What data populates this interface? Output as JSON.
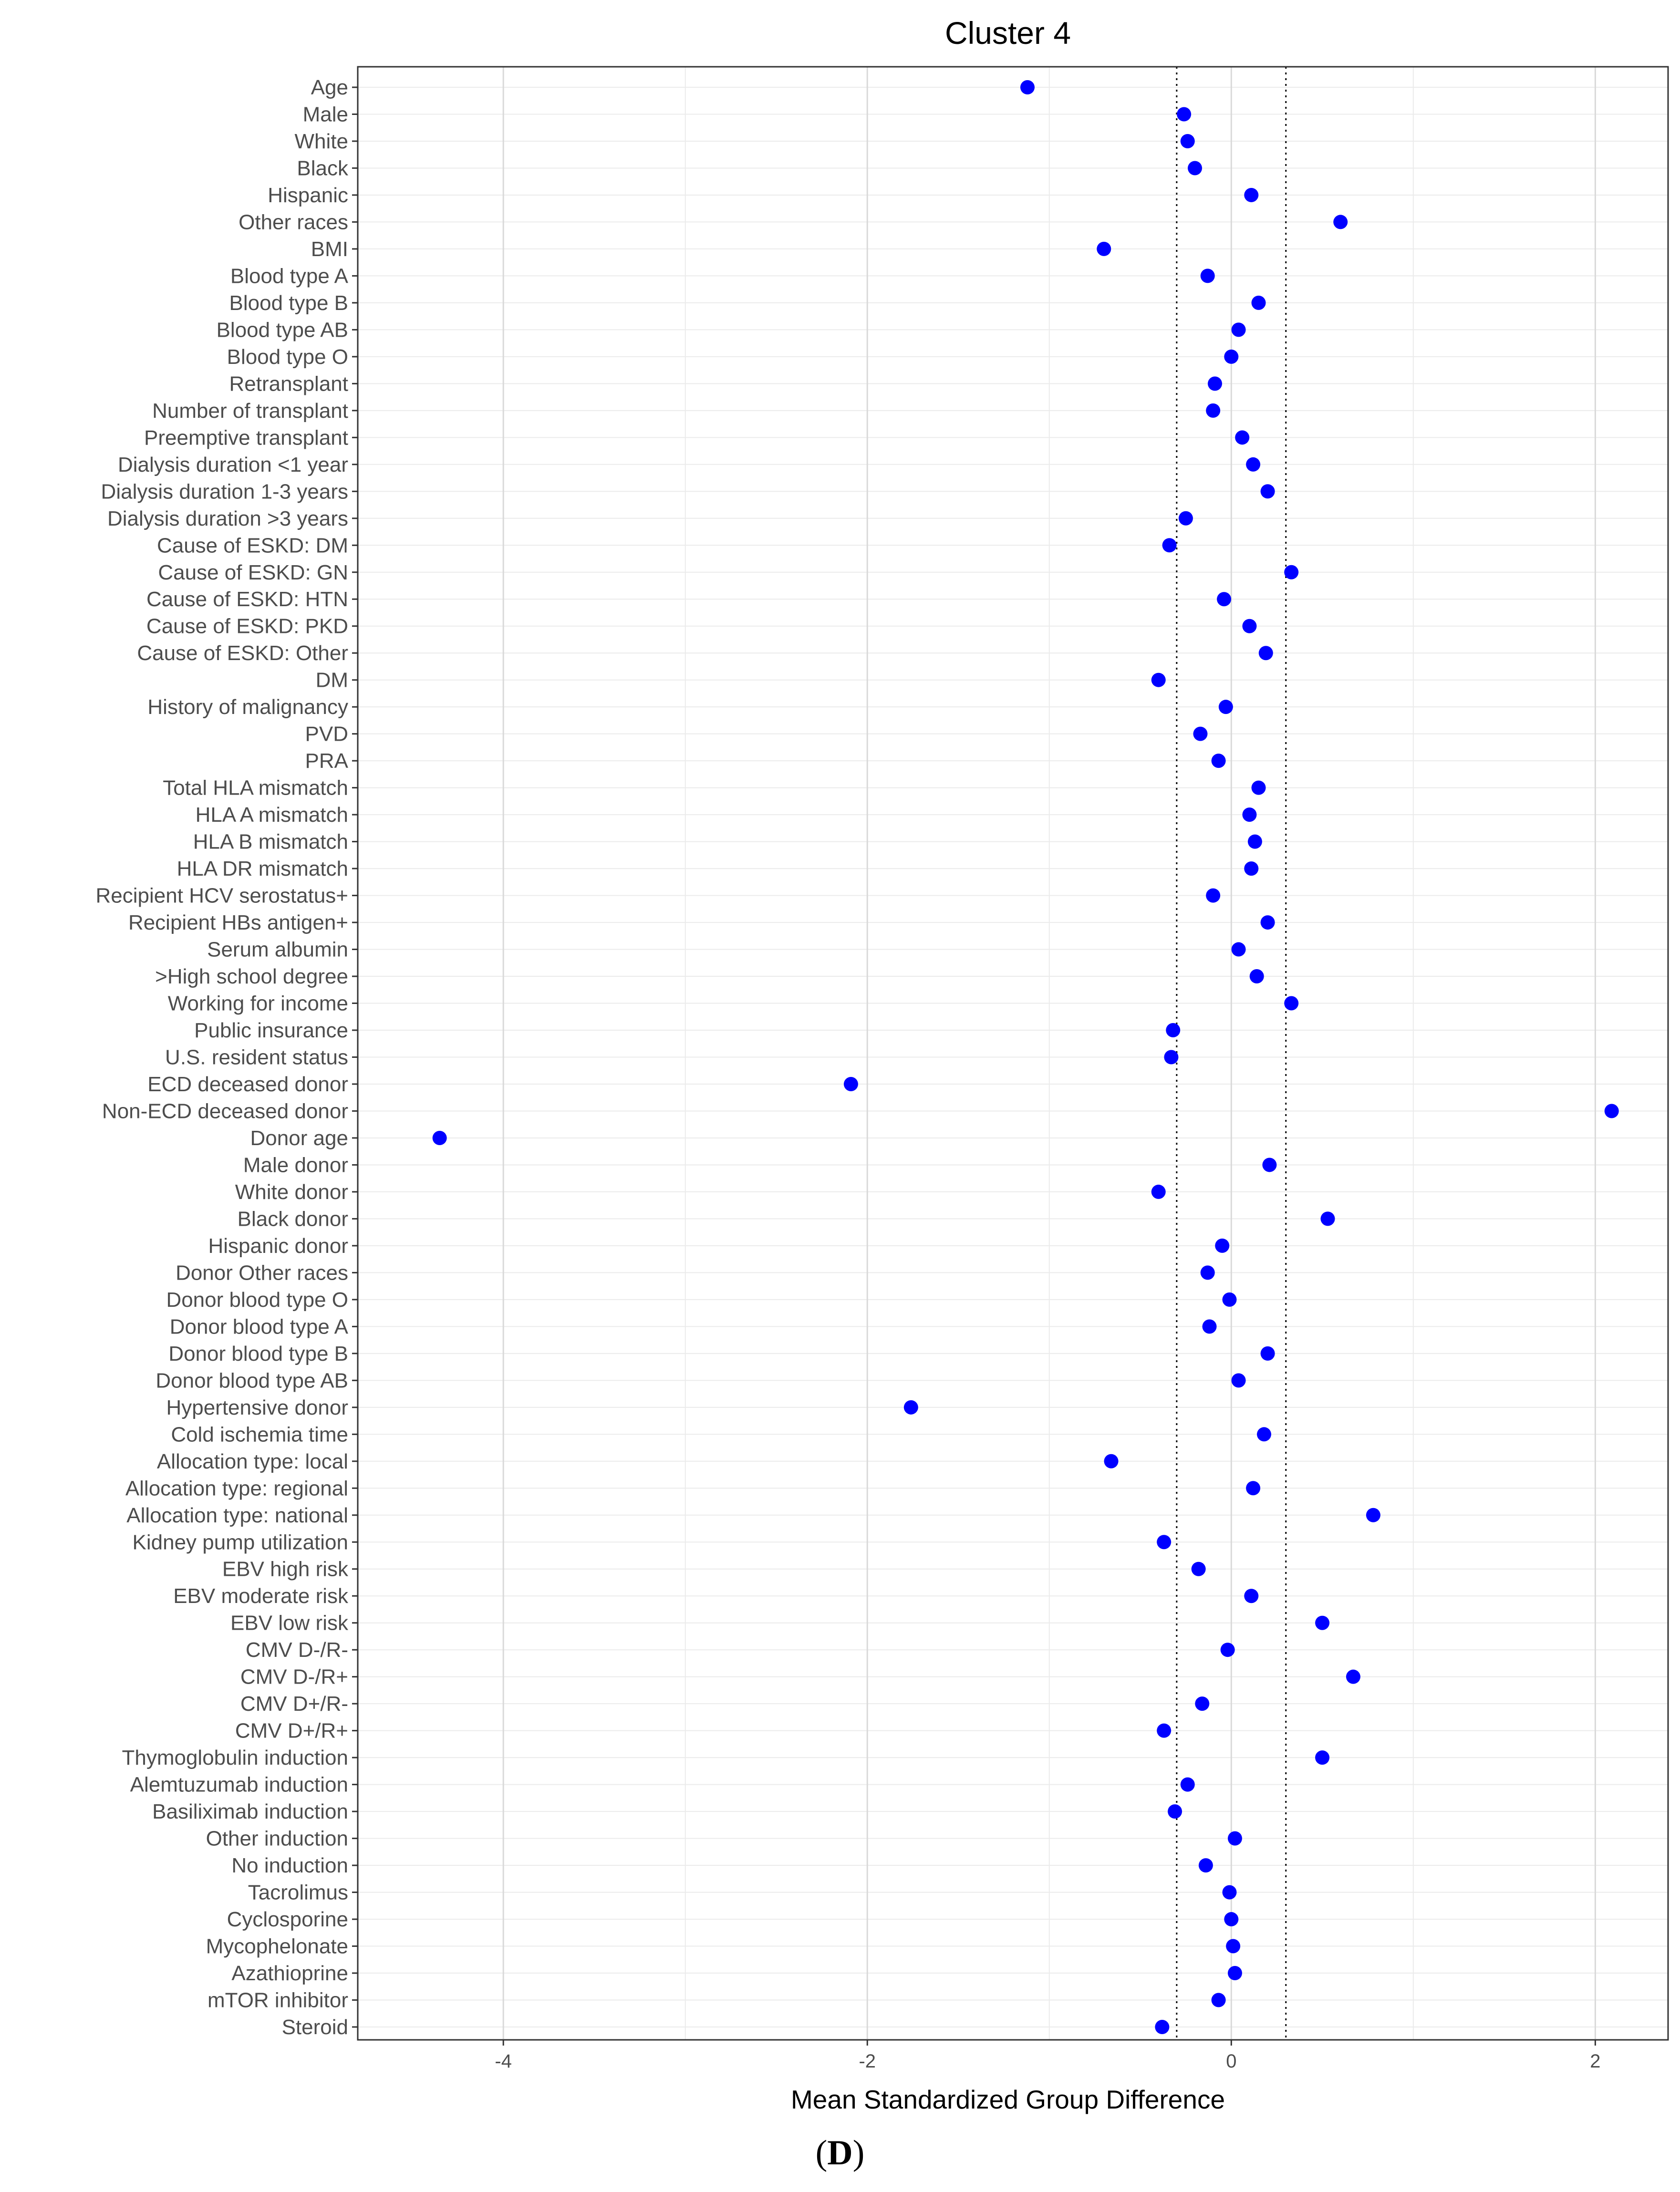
{
  "caption": {
    "open": "(",
    "letter": "D",
    "close": ")"
  },
  "chart_data": {
    "type": "scatter",
    "title": "Cluster 4",
    "xlabel": "Mean Standardized Group Difference",
    "ylabel": "",
    "xlim": [
      -4.8,
      2.4
    ],
    "xticks": [
      -4,
      -2,
      0,
      2
    ],
    "xtick_labels": [
      "-4",
      "-2",
      "0",
      "2"
    ],
    "major_gridlines_x": [
      -4,
      -2,
      0,
      2
    ],
    "minor_gridlines_x": [
      -3,
      -1,
      1
    ],
    "reference_lines": [
      -0.3,
      0.3
    ],
    "reference_line_style": "dotted",
    "point_color": "#0000ff",
    "grid": true,
    "legend": "none",
    "categories": [
      "Age",
      "Male",
      "White",
      "Black",
      "Hispanic",
      "Other races",
      "BMI",
      "Blood type A",
      "Blood type B",
      "Blood type AB",
      "Blood type O",
      "Retransplant",
      "Number of transplant",
      "Preemptive transplant",
      "Dialysis duration <1 year",
      "Dialysis duration 1-3 years",
      "Dialysis duration >3 years",
      "Cause of ESKD: DM",
      "Cause of ESKD: GN",
      "Cause of ESKD: HTN",
      "Cause of ESKD: PKD",
      "Cause of ESKD: Other",
      "DM",
      "History of malignancy",
      "PVD",
      "PRA",
      "Total HLA mismatch",
      "HLA A mismatch",
      "HLA B mismatch",
      "HLA DR mismatch",
      "Recipient HCV serostatus+",
      "Recipient HBs antigen+",
      "Serum albumin",
      ">High school degree",
      "Working for income",
      "Public insurance",
      "U.S. resident status",
      "ECD deceased donor",
      "Non-ECD deceased donor",
      "Donor age",
      "Male donor",
      "White donor",
      "Black donor",
      "Hispanic donor",
      "Donor Other races",
      "Donor blood type O",
      "Donor blood type A",
      "Donor blood type B",
      "Donor blood type AB",
      "Hypertensive donor",
      "Cold ischemia time",
      "Allocation type: local",
      "Allocation type: regional",
      "Allocation type: national",
      "Kidney pump utilization",
      "EBV high risk",
      "EBV moderate risk",
      "EBV low risk",
      "CMV D-/R-",
      "CMV D-/R+",
      "CMV D+/R-",
      "CMV D+/R+",
      "Thymoglobulin induction",
      "Alemtuzumab induction",
      "Basiliximab induction",
      "Other induction",
      "No induction",
      "Tacrolimus",
      "Cyclosporine",
      "Mycophelonate",
      "Azathioprine",
      "mTOR inhibitor",
      "Steroid"
    ],
    "values": [
      -1.12,
      -0.26,
      -0.24,
      -0.2,
      0.11,
      0.6,
      -0.7,
      -0.13,
      0.15,
      0.04,
      0.0,
      -0.09,
      -0.1,
      0.06,
      0.12,
      0.2,
      -0.25,
      -0.34,
      0.33,
      -0.04,
      0.1,
      0.19,
      -0.4,
      -0.03,
      -0.17,
      -0.07,
      0.15,
      0.1,
      0.13,
      0.11,
      -0.1,
      0.2,
      0.04,
      0.14,
      0.33,
      -0.32,
      -0.33,
      -2.09,
      2.09,
      -4.35,
      0.21,
      -0.4,
      0.53,
      -0.05,
      -0.13,
      -0.01,
      -0.12,
      0.2,
      0.04,
      -1.76,
      0.18,
      -0.66,
      0.12,
      0.78,
      -0.37,
      -0.18,
      0.11,
      0.5,
      -0.02,
      0.67,
      -0.16,
      -0.37,
      0.5,
      -0.24,
      -0.31,
      0.02,
      -0.14,
      -0.01,
      0.0,
      0.01,
      0.02,
      -0.07,
      -0.38
    ]
  }
}
